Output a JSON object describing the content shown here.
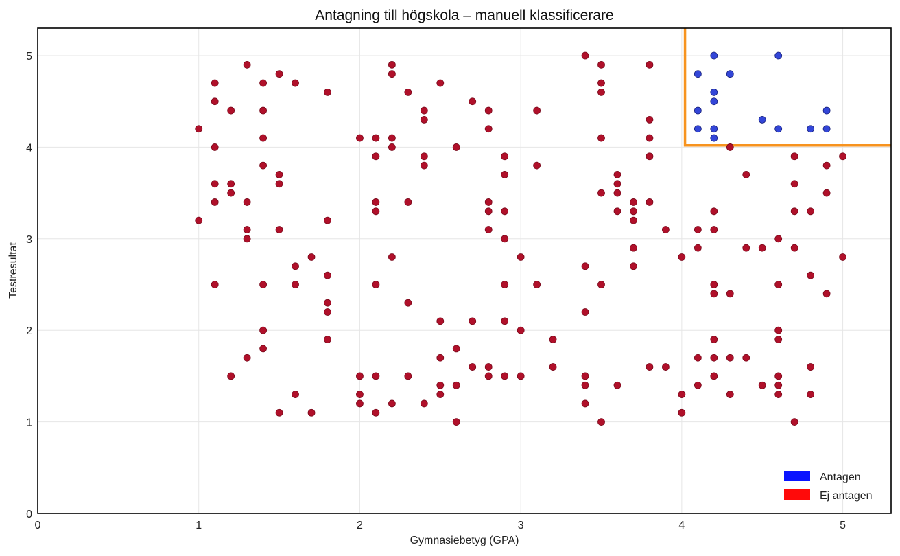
{
  "chart_data": {
    "type": "scatter",
    "title": "Antagning till högskola – manuell klassificerare",
    "xlabel": "Gymnasiebetyg (GPA)",
    "ylabel": "Testresultat",
    "xlim": [
      0,
      5.3
    ],
    "ylim": [
      0,
      5.3
    ],
    "xticks": [
      "0",
      "1",
      "2",
      "3",
      "4",
      "5"
    ],
    "yticks": [
      "0",
      "1",
      "2",
      "3",
      "4",
      "5"
    ],
    "grid": true,
    "legend_position": "bottom-right",
    "decision_boundary": {
      "gpa": 4.02,
      "test": 4.02,
      "color": "#f7931e"
    },
    "series": [
      {
        "name": "Antagen",
        "color": "#3346d8",
        "legend_color": "#0a14ff",
        "points": [
          [
            4.1,
            4.8
          ],
          [
            4.2,
            5.0
          ],
          [
            4.3,
            4.8
          ],
          [
            4.6,
            5.0
          ],
          [
            4.2,
            4.6
          ],
          [
            4.2,
            4.5
          ],
          [
            4.1,
            4.4
          ],
          [
            4.9,
            4.4
          ],
          [
            4.5,
            4.3
          ],
          [
            4.1,
            4.2
          ],
          [
            4.2,
            4.2
          ],
          [
            4.6,
            4.2
          ],
          [
            4.8,
            4.2
          ],
          [
            4.9,
            4.2
          ],
          [
            4.2,
            4.1
          ]
        ]
      },
      {
        "name": "Ej antagen",
        "color": "#b0102a",
        "legend_color": "#ff0a0a",
        "points": [
          [
            1.0,
            4.2
          ],
          [
            1.0,
            3.2
          ],
          [
            1.1,
            4.7
          ],
          [
            1.1,
            4.5
          ],
          [
            1.1,
            4.0
          ],
          [
            1.1,
            3.6
          ],
          [
            1.1,
            3.4
          ],
          [
            1.1,
            2.5
          ],
          [
            1.2,
            4.4
          ],
          [
            1.2,
            3.6
          ],
          [
            1.2,
            3.5
          ],
          [
            1.2,
            1.5
          ],
          [
            1.3,
            4.9
          ],
          [
            1.3,
            3.4
          ],
          [
            1.3,
            3.1
          ],
          [
            1.3,
            3.0
          ],
          [
            1.3,
            1.7
          ],
          [
            1.4,
            4.7
          ],
          [
            1.4,
            4.4
          ],
          [
            1.4,
            4.1
          ],
          [
            1.4,
            3.8
          ],
          [
            1.4,
            2.5
          ],
          [
            1.4,
            2.0
          ],
          [
            1.4,
            1.8
          ],
          [
            1.5,
            4.8
          ],
          [
            1.5,
            3.7
          ],
          [
            1.5,
            3.6
          ],
          [
            1.5,
            3.1
          ],
          [
            1.5,
            1.1
          ],
          [
            1.6,
            4.7
          ],
          [
            1.6,
            2.7
          ],
          [
            1.6,
            2.5
          ],
          [
            1.6,
            1.3
          ],
          [
            1.7,
            2.8
          ],
          [
            1.7,
            1.1
          ],
          [
            1.8,
            4.6
          ],
          [
            1.8,
            3.2
          ],
          [
            1.8,
            2.6
          ],
          [
            1.8,
            2.3
          ],
          [
            1.8,
            2.2
          ],
          [
            1.8,
            1.9
          ],
          [
            2.0,
            4.1
          ],
          [
            2.0,
            1.5
          ],
          [
            2.0,
            1.3
          ],
          [
            2.0,
            1.2
          ],
          [
            2.1,
            4.1
          ],
          [
            2.1,
            3.9
          ],
          [
            2.1,
            3.4
          ],
          [
            2.1,
            3.3
          ],
          [
            2.1,
            2.5
          ],
          [
            2.1,
            1.5
          ],
          [
            2.1,
            1.1
          ],
          [
            2.2,
            4.9
          ],
          [
            2.2,
            4.8
          ],
          [
            2.2,
            4.1
          ],
          [
            2.2,
            4.0
          ],
          [
            2.2,
            2.8
          ],
          [
            2.2,
            1.2
          ],
          [
            2.3,
            4.6
          ],
          [
            2.3,
            3.4
          ],
          [
            2.3,
            2.3
          ],
          [
            2.3,
            1.5
          ],
          [
            2.4,
            4.4
          ],
          [
            2.4,
            4.3
          ],
          [
            2.4,
            3.9
          ],
          [
            2.4,
            3.8
          ],
          [
            2.4,
            1.2
          ],
          [
            2.5,
            4.7
          ],
          [
            2.5,
            2.1
          ],
          [
            2.5,
            1.7
          ],
          [
            2.5,
            1.4
          ],
          [
            2.5,
            1.3
          ],
          [
            2.6,
            4.0
          ],
          [
            2.6,
            1.8
          ],
          [
            2.6,
            1.4
          ],
          [
            2.6,
            1.0
          ],
          [
            2.7,
            4.5
          ],
          [
            2.7,
            2.1
          ],
          [
            2.7,
            1.6
          ],
          [
            2.8,
            4.4
          ],
          [
            2.8,
            4.2
          ],
          [
            2.8,
            3.4
          ],
          [
            2.8,
            3.3
          ],
          [
            2.8,
            3.1
          ],
          [
            2.8,
            1.6
          ],
          [
            2.8,
            1.5
          ],
          [
            2.9,
            3.9
          ],
          [
            2.9,
            3.7
          ],
          [
            2.9,
            3.3
          ],
          [
            2.9,
            3.0
          ],
          [
            2.9,
            2.5
          ],
          [
            2.9,
            2.1
          ],
          [
            2.9,
            1.5
          ],
          [
            3.0,
            2.8
          ],
          [
            3.0,
            2.0
          ],
          [
            3.0,
            1.5
          ],
          [
            3.1,
            4.4
          ],
          [
            3.1,
            3.8
          ],
          [
            3.1,
            2.5
          ],
          [
            3.2,
            1.9
          ],
          [
            3.2,
            1.6
          ],
          [
            3.4,
            5.0
          ],
          [
            3.4,
            2.7
          ],
          [
            3.4,
            2.2
          ],
          [
            3.4,
            1.5
          ],
          [
            3.4,
            1.4
          ],
          [
            3.4,
            1.2
          ],
          [
            3.5,
            4.9
          ],
          [
            3.5,
            4.7
          ],
          [
            3.5,
            4.6
          ],
          [
            3.5,
            4.1
          ],
          [
            3.5,
            3.5
          ],
          [
            3.5,
            2.5
          ],
          [
            3.5,
            1.0
          ],
          [
            3.6,
            3.7
          ],
          [
            3.6,
            3.6
          ],
          [
            3.6,
            3.5
          ],
          [
            3.6,
            3.3
          ],
          [
            3.6,
            1.4
          ],
          [
            3.7,
            3.4
          ],
          [
            3.7,
            3.3
          ],
          [
            3.7,
            3.2
          ],
          [
            3.7,
            2.9
          ],
          [
            3.7,
            2.7
          ],
          [
            3.8,
            4.9
          ],
          [
            3.8,
            4.3
          ],
          [
            3.8,
            4.1
          ],
          [
            3.8,
            3.9
          ],
          [
            3.8,
            3.4
          ],
          [
            3.8,
            1.6
          ],
          [
            3.9,
            3.1
          ],
          [
            3.9,
            1.6
          ],
          [
            4.0,
            2.8
          ],
          [
            4.0,
            1.3
          ],
          [
            4.0,
            1.1
          ],
          [
            4.1,
            3.1
          ],
          [
            4.1,
            2.9
          ],
          [
            4.1,
            1.7
          ],
          [
            4.1,
            1.4
          ],
          [
            4.2,
            3.3
          ],
          [
            4.2,
            3.1
          ],
          [
            4.2,
            2.5
          ],
          [
            4.2,
            2.4
          ],
          [
            4.2,
            1.9
          ],
          [
            4.2,
            1.7
          ],
          [
            4.2,
            1.5
          ],
          [
            4.3,
            4.0
          ],
          [
            4.3,
            2.4
          ],
          [
            4.3,
            1.7
          ],
          [
            4.3,
            1.3
          ],
          [
            4.4,
            3.7
          ],
          [
            4.4,
            2.9
          ],
          [
            4.4,
            1.7
          ],
          [
            4.5,
            2.9
          ],
          [
            4.5,
            1.4
          ],
          [
            4.6,
            3.0
          ],
          [
            4.6,
            2.5
          ],
          [
            4.6,
            2.0
          ],
          [
            4.6,
            1.9
          ],
          [
            4.6,
            1.5
          ],
          [
            4.6,
            1.4
          ],
          [
            4.6,
            1.3
          ],
          [
            4.7,
            3.9
          ],
          [
            4.7,
            3.6
          ],
          [
            4.7,
            3.3
          ],
          [
            4.7,
            2.9
          ],
          [
            4.7,
            1.0
          ],
          [
            4.8,
            3.3
          ],
          [
            4.8,
            2.6
          ],
          [
            4.8,
            1.6
          ],
          [
            4.8,
            1.3
          ],
          [
            4.9,
            3.8
          ],
          [
            4.9,
            3.5
          ],
          [
            4.9,
            2.4
          ],
          [
            5.0,
            3.9
          ],
          [
            5.0,
            2.8
          ]
        ]
      }
    ]
  }
}
